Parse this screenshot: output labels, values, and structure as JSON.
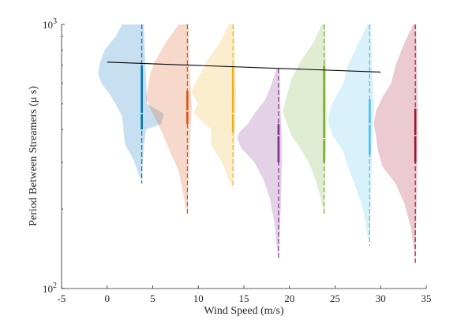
{
  "chart_data": {
    "type": "violin",
    "xlabel": "Wind Speed (m/s)",
    "ylabel": "Period Between Streamers (μ s)",
    "x_ticks": [
      -5,
      0,
      5,
      10,
      15,
      20,
      25,
      30,
      35
    ],
    "x_tick_labels": [
      "-5",
      "0",
      "5",
      "10",
      "15",
      "20",
      "25",
      "30",
      "35"
    ],
    "xlim": [
      -5,
      35
    ],
    "y_scale": "log",
    "ylim": [
      100,
      1000
    ],
    "y_tick_labels": [
      {
        "value": 1000,
        "base": "10",
        "exp": "3"
      },
      {
        "value": 100,
        "base": "10",
        "exp": "2"
      }
    ],
    "series": [
      {
        "x": 3.8,
        "color": "#0072BD",
        "median": 460,
        "q1": 400,
        "q3": 700,
        "ymin": 250,
        "ymax": 1000,
        "left_profile": [
          [
            1000,
            0.45
          ],
          [
            900,
            0.6
          ],
          [
            800,
            0.85
          ],
          [
            720,
            0.95
          ],
          [
            650,
            1.0
          ],
          [
            590,
            0.9
          ],
          [
            550,
            0.75
          ],
          [
            500,
            0.6
          ],
          [
            450,
            0.45
          ],
          [
            400,
            0.42
          ],
          [
            350,
            0.38
          ],
          [
            310,
            0.2
          ],
          [
            280,
            0.1
          ],
          [
            250,
            0.0
          ]
        ],
        "right_profile": [
          [
            1000,
            0.05
          ],
          [
            700,
            0.08
          ],
          [
            600,
            0.1
          ],
          [
            500,
            0.12
          ],
          [
            460,
            0.5
          ],
          [
            420,
            0.45
          ],
          [
            400,
            0.1
          ],
          [
            350,
            0.05
          ],
          [
            300,
            0.02
          ],
          [
            250,
            0.0
          ]
        ]
      },
      {
        "x": 8.8,
        "color": "#D95319",
        "median": 470,
        "q1": 420,
        "q3": 560,
        "ymin": 190,
        "ymax": 1000,
        "left_profile": [
          [
            1000,
            0.2
          ],
          [
            850,
            0.5
          ],
          [
            720,
            0.75
          ],
          [
            650,
            0.85
          ],
          [
            580,
            0.9
          ],
          [
            530,
            0.95
          ],
          [
            480,
            0.85
          ],
          [
            430,
            0.7
          ],
          [
            380,
            0.55
          ],
          [
            330,
            0.4
          ],
          [
            280,
            0.2
          ],
          [
            230,
            0.1
          ],
          [
            190,
            0.0
          ]
        ],
        "right_profile": [
          [
            1000,
            0.03
          ],
          [
            700,
            0.05
          ],
          [
            560,
            0.08
          ],
          [
            480,
            0.1
          ],
          [
            420,
            0.08
          ],
          [
            300,
            0.04
          ],
          [
            190,
            0.0
          ]
        ]
      },
      {
        "x": 13.8,
        "color": "#EDB120",
        "median": 460,
        "q1": 390,
        "q3": 700,
        "ymin": 240,
        "ymax": 1000,
        "left_profile": [
          [
            1000,
            0.1
          ],
          [
            850,
            0.3
          ],
          [
            750,
            0.55
          ],
          [
            650,
            0.75
          ],
          [
            560,
            0.95
          ],
          [
            500,
            0.8
          ],
          [
            460,
            0.9
          ],
          [
            400,
            0.5
          ],
          [
            350,
            0.5
          ],
          [
            300,
            0.25
          ],
          [
            260,
            0.1
          ],
          [
            240,
            0.0
          ]
        ],
        "right_profile": [
          [
            1000,
            0.03
          ],
          [
            700,
            0.05
          ],
          [
            500,
            0.08
          ],
          [
            460,
            0.06
          ],
          [
            350,
            0.04
          ],
          [
            240,
            0.0
          ]
        ]
      },
      {
        "x": 18.8,
        "color": "#7E2F8E",
        "median": 380,
        "q1": 300,
        "q3": 420,
        "ymin": 130,
        "ymax": 680,
        "left_profile": [
          [
            680,
            0.05
          ],
          [
            600,
            0.15
          ],
          [
            520,
            0.3
          ],
          [
            460,
            0.55
          ],
          [
            420,
            0.7
          ],
          [
            390,
            0.9
          ],
          [
            370,
            0.95
          ],
          [
            340,
            0.85
          ],
          [
            300,
            0.55
          ],
          [
            260,
            0.35
          ],
          [
            220,
            0.2
          ],
          [
            180,
            0.1
          ],
          [
            150,
            0.05
          ],
          [
            130,
            0.0
          ]
        ],
        "right_profile": [
          [
            680,
            0.02
          ],
          [
            500,
            0.04
          ],
          [
            420,
            0.06
          ],
          [
            380,
            0.08
          ],
          [
            300,
            0.08
          ],
          [
            200,
            0.05
          ],
          [
            130,
            0.0
          ]
        ]
      },
      {
        "x": 23.8,
        "color": "#77AC30",
        "median": 370,
        "q1": 300,
        "q3": 700,
        "ymin": 190,
        "ymax": 1000,
        "left_profile": [
          [
            1000,
            0.05
          ],
          [
            850,
            0.25
          ],
          [
            720,
            0.55
          ],
          [
            620,
            0.75
          ],
          [
            540,
            0.85
          ],
          [
            470,
            0.95
          ],
          [
            420,
            0.85
          ],
          [
            380,
            0.75
          ],
          [
            340,
            0.55
          ],
          [
            300,
            0.35
          ],
          [
            260,
            0.2
          ],
          [
            220,
            0.08
          ],
          [
            190,
            0.0
          ]
        ],
        "right_profile": [
          [
            1000,
            0.02
          ],
          [
            700,
            0.04
          ],
          [
            450,
            0.06
          ],
          [
            370,
            0.05
          ],
          [
            300,
            0.03
          ],
          [
            190,
            0.0
          ]
        ]
      },
      {
        "x": 28.8,
        "color": "#4DBEEE",
        "median": 420,
        "q1": 320,
        "q3": 520,
        "ymin": 145,
        "ymax": 1000,
        "left_profile": [
          [
            1000,
            0.05
          ],
          [
            850,
            0.25
          ],
          [
            700,
            0.5
          ],
          [
            600,
            0.6
          ],
          [
            540,
            0.75
          ],
          [
            480,
            0.9
          ],
          [
            430,
            0.95
          ],
          [
            380,
            0.85
          ],
          [
            330,
            0.6
          ],
          [
            290,
            0.5
          ],
          [
            250,
            0.35
          ],
          [
            200,
            0.15
          ],
          [
            160,
            0.05
          ],
          [
            145,
            0.0
          ]
        ],
        "right_profile": [
          [
            1000,
            0.03
          ],
          [
            700,
            0.05
          ],
          [
            480,
            0.1
          ],
          [
            420,
            0.08
          ],
          [
            330,
            0.05
          ],
          [
            145,
            0.0
          ]
        ]
      },
      {
        "x": 33.8,
        "color": "#A2142F",
        "median": 380,
        "q1": 300,
        "q3": 480,
        "ymin": 125,
        "ymax": 1000,
        "left_profile": [
          [
            1000,
            0.05
          ],
          [
            850,
            0.25
          ],
          [
            700,
            0.45
          ],
          [
            600,
            0.55
          ],
          [
            530,
            0.75
          ],
          [
            470,
            0.9
          ],
          [
            420,
            0.95
          ],
          [
            380,
            0.9
          ],
          [
            330,
            0.85
          ],
          [
            290,
            0.75
          ],
          [
            250,
            0.45
          ],
          [
            210,
            0.25
          ],
          [
            170,
            0.1
          ],
          [
            140,
            0.03
          ],
          [
            125,
            0.0
          ]
        ],
        "right_profile": [
          [
            1000,
            0.02
          ],
          [
            700,
            0.04
          ],
          [
            480,
            0.06
          ],
          [
            380,
            0.06
          ],
          [
            300,
            0.05
          ],
          [
            200,
            0.03
          ],
          [
            125,
            0.0
          ]
        ]
      }
    ],
    "trend_line": {
      "x": [
        0,
        30
      ],
      "y": [
        720,
        660
      ],
      "color": "#000000"
    },
    "violin_scale": 4.8,
    "grid": false,
    "legend": "none"
  }
}
